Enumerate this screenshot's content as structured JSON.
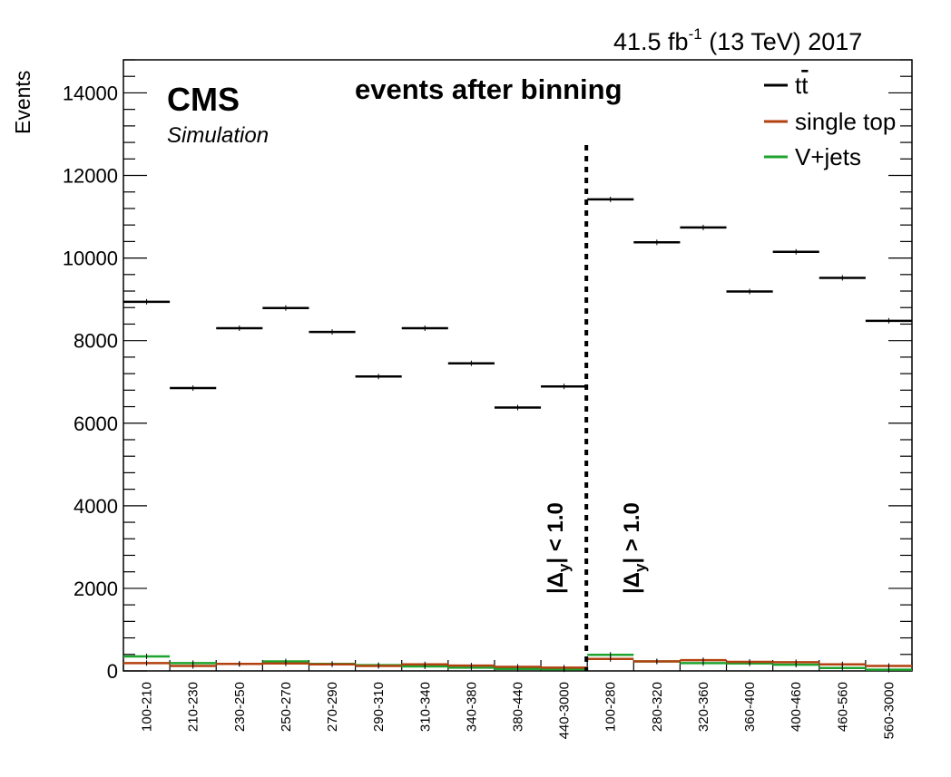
{
  "chart_data": {
    "type": "line",
    "title": "events after binning",
    "luminosity": "41.5 fb",
    "luminosity_exp": "-1",
    "luminosity_rest": " (13 TeV) 2017",
    "experiment": "CMS",
    "experiment_sub": "Simulation",
    "ylabel": "Events",
    "xlabel": "",
    "ylim": [
      0,
      14800
    ],
    "yticks": [
      0,
      2000,
      4000,
      6000,
      8000,
      10000,
      12000,
      14000
    ],
    "categories": [
      "100-210",
      "210-230",
      "230-250",
      "250-270",
      "270-290",
      "290-310",
      "310-340",
      "340-380",
      "380-440",
      "440-3000",
      "100-280",
      "280-320",
      "320-360",
      "360-400",
      "400-460",
      "460-560",
      "560-3000"
    ],
    "series": [
      {
        "name": "t",
        "name_bar": "t",
        "color": "#000000",
        "values": [
          8940,
          6850,
          8300,
          8790,
          8210,
          7130,
          8300,
          7450,
          6380,
          6890,
          11420,
          10380,
          10740,
          9190,
          10150,
          9520,
          8480
        ]
      },
      {
        "name": "single top",
        "color": "#b3410f",
        "values": [
          190,
          120,
          170,
          180,
          160,
          120,
          160,
          130,
          100,
          80,
          290,
          230,
          260,
          220,
          210,
          160,
          120
        ]
      },
      {
        "name": "V+jets",
        "color": "#1ea32e",
        "values": [
          350,
          190,
          170,
          230,
          170,
          140,
          110,
          80,
          50,
          40,
          390,
          230,
          190,
          180,
          150,
          70,
          30
        ]
      }
    ],
    "regions": [
      {
        "label": "|Δ",
        "sub": "y",
        "rest": "| < 1.0"
      },
      {
        "label": "|Δ",
        "sub": "y",
        "rest": "| > 1.0"
      }
    ],
    "divider_after_bin": 10,
    "legend_position": "top-right",
    "grid": false
  }
}
